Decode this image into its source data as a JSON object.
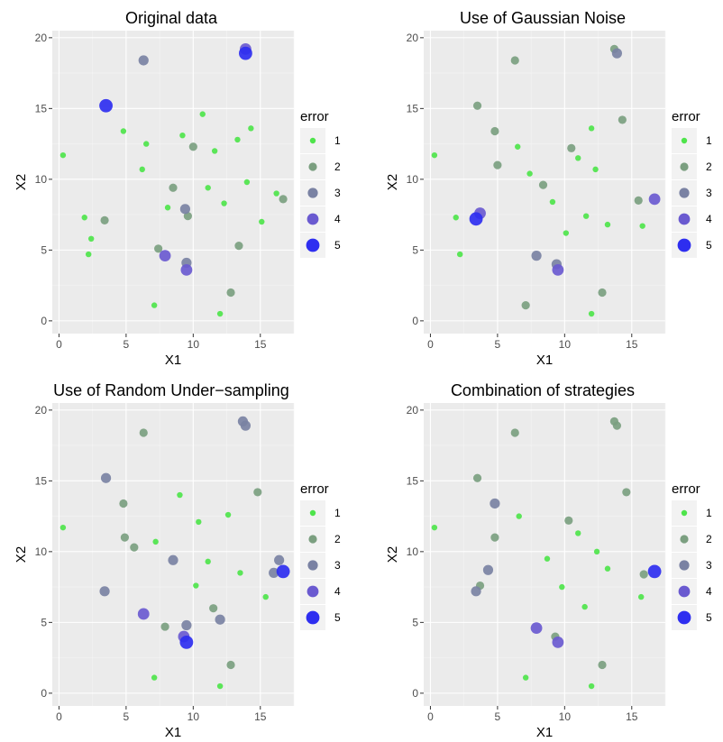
{
  "chart_data": [
    {
      "type": "scatter",
      "title": "Original data",
      "xlabel": "X1",
      "ylabel": "X2",
      "xlim": [
        -0.5,
        17.5
      ],
      "ylim": [
        -0.9,
        20.5
      ],
      "xticks": [
        0,
        5,
        10,
        15
      ],
      "yticks": [
        0,
        5,
        10,
        15,
        20
      ],
      "grid": true,
      "legend": {
        "title": "error",
        "position": "right",
        "labels": [
          "1",
          "2",
          "3",
          "4",
          "5"
        ]
      },
      "colors": [
        "#4ee44b",
        "#7b9f80",
        "#7a82a3",
        "#6a5ad0",
        "#2e2ef0"
      ],
      "points": [
        [
          13.9,
          19.2,
          4
        ],
        [
          13.9,
          18.9,
          5
        ],
        [
          6.3,
          18.4,
          3
        ],
        [
          3.5,
          15.2,
          5
        ],
        [
          12.8,
          2.0,
          2
        ],
        [
          7.1,
          1.1,
          1
        ],
        [
          12.0,
          0.5,
          1
        ],
        [
          0.3,
          11.7,
          1
        ],
        [
          4.8,
          13.4,
          1
        ],
        [
          1.9,
          7.3,
          1
        ],
        [
          2.4,
          5.8,
          1
        ],
        [
          2.2,
          4.7,
          1
        ],
        [
          3.4,
          7.1,
          2
        ],
        [
          7.4,
          5.1,
          2
        ],
        [
          7.9,
          4.6,
          4
        ],
        [
          9.5,
          3.6,
          4
        ],
        [
          9.5,
          4.1,
          3
        ],
        [
          13.4,
          5.3,
          2
        ],
        [
          16.7,
          8.6,
          2
        ],
        [
          10.0,
          12.3,
          2
        ],
        [
          8.5,
          9.4,
          2
        ],
        [
          9.4,
          7.9,
          3
        ],
        [
          9.6,
          7.4,
          2
        ],
        [
          14.0,
          9.8,
          1
        ],
        [
          15.1,
          7.0,
          1
        ],
        [
          16.2,
          9.0,
          1
        ],
        [
          6.5,
          12.5,
          1
        ],
        [
          6.2,
          10.7,
          1
        ],
        [
          11.6,
          12.0,
          1
        ],
        [
          12.3,
          8.3,
          1
        ],
        [
          10.7,
          14.6,
          1
        ],
        [
          9.2,
          13.1,
          1
        ],
        [
          11.1,
          9.4,
          1
        ],
        [
          8.1,
          8.0,
          1
        ],
        [
          13.3,
          12.8,
          1
        ],
        [
          14.3,
          13.6,
          1
        ]
      ]
    },
    {
      "type": "scatter",
      "title": "Use of Gaussian Noise",
      "xlabel": "X1",
      "ylabel": "X2",
      "xlim": [
        -0.5,
        17.5
      ],
      "ylim": [
        -0.9,
        20.5
      ],
      "xticks": [
        0,
        5,
        10,
        15
      ],
      "yticks": [
        0,
        5,
        10,
        15,
        20
      ],
      "grid": true,
      "legend": {
        "title": "error",
        "position": "right",
        "labels": [
          "1",
          "2",
          "3",
          "4",
          "5"
        ]
      },
      "colors": [
        "#4ee44b",
        "#7b9f80",
        "#7a82a3",
        "#6a5ad0",
        "#2e2ef0"
      ],
      "points": [
        [
          13.7,
          19.2,
          2
        ],
        [
          13.9,
          18.9,
          3
        ],
        [
          6.3,
          18.4,
          2
        ],
        [
          3.5,
          15.2,
          2
        ],
        [
          4.8,
          13.4,
          2
        ],
        [
          3.4,
          7.2,
          5
        ],
        [
          3.7,
          7.6,
          4
        ],
        [
          9.5,
          3.6,
          4
        ],
        [
          9.4,
          4.0,
          3
        ],
        [
          7.9,
          4.6,
          3
        ],
        [
          16.7,
          8.6,
          4
        ],
        [
          12.8,
          2.0,
          2
        ],
        [
          7.1,
          1.1,
          2
        ],
        [
          12.0,
          0.5,
          1
        ],
        [
          0.3,
          11.7,
          1
        ],
        [
          2.2,
          4.7,
          1
        ],
        [
          1.9,
          7.3,
          1
        ],
        [
          5.0,
          11.0,
          2
        ],
        [
          15.5,
          8.5,
          2
        ],
        [
          14.3,
          14.2,
          2
        ],
        [
          10.5,
          12.2,
          2
        ],
        [
          8.4,
          9.6,
          2
        ],
        [
          11.0,
          11.5,
          1
        ],
        [
          9.1,
          8.4,
          1
        ],
        [
          12.3,
          10.7,
          1
        ],
        [
          6.5,
          12.3,
          1
        ],
        [
          13.2,
          6.8,
          1
        ],
        [
          10.1,
          6.2,
          1
        ],
        [
          15.8,
          6.7,
          1
        ],
        [
          12.0,
          13.6,
          1
        ],
        [
          7.4,
          10.4,
          1
        ],
        [
          11.6,
          7.4,
          1
        ]
      ]
    },
    {
      "type": "scatter",
      "title": "Use of Random Under−sampling",
      "xlabel": "X1",
      "ylabel": "X2",
      "xlim": [
        -0.5,
        17.5
      ],
      "ylim": [
        -0.9,
        20.5
      ],
      "xticks": [
        0,
        5,
        10,
        15
      ],
      "yticks": [
        0,
        5,
        10,
        15,
        20
      ],
      "grid": true,
      "legend": {
        "title": "error",
        "position": "right",
        "labels": [
          "1",
          "2",
          "3",
          "4",
          "5"
        ]
      },
      "colors": [
        "#4ee44b",
        "#7b9f80",
        "#7a82a3",
        "#6a5ad0",
        "#2e2ef0"
      ],
      "points": [
        [
          13.7,
          19.2,
          3
        ],
        [
          13.9,
          18.9,
          3
        ],
        [
          6.3,
          18.4,
          2
        ],
        [
          3.5,
          15.2,
          3
        ],
        [
          3.4,
          7.2,
          3
        ],
        [
          6.3,
          5.6,
          4
        ],
        [
          9.5,
          3.6,
          5
        ],
        [
          9.3,
          4.0,
          4
        ],
        [
          9.5,
          4.8,
          3
        ],
        [
          16.7,
          8.6,
          5
        ],
        [
          16.4,
          9.4,
          3
        ],
        [
          16.0,
          8.5,
          3
        ],
        [
          12.8,
          2.0,
          2
        ],
        [
          7.1,
          1.1,
          1
        ],
        [
          12.0,
          0.5,
          1
        ],
        [
          0.3,
          11.7,
          1
        ],
        [
          4.8,
          13.4,
          2
        ],
        [
          4.9,
          11.0,
          2
        ],
        [
          5.6,
          10.3,
          2
        ],
        [
          8.5,
          9.4,
          3
        ],
        [
          12.0,
          5.2,
          3
        ],
        [
          11.5,
          6.0,
          2
        ],
        [
          14.8,
          14.2,
          2
        ],
        [
          15.4,
          6.8,
          1
        ],
        [
          10.4,
          12.1,
          1
        ],
        [
          11.1,
          9.3,
          1
        ],
        [
          9.0,
          14.0,
          1
        ],
        [
          7.2,
          10.7,
          1
        ],
        [
          12.6,
          12.6,
          1
        ],
        [
          10.2,
          7.6,
          1
        ],
        [
          13.5,
          8.5,
          1
        ],
        [
          7.9,
          4.7,
          2
        ]
      ]
    },
    {
      "type": "scatter",
      "title": "Combination of strategies",
      "xlabel": "X1",
      "ylabel": "X2",
      "xlim": [
        -0.5,
        17.5
      ],
      "ylim": [
        -0.9,
        20.5
      ],
      "xticks": [
        0,
        5,
        10,
        15
      ],
      "yticks": [
        0,
        5,
        10,
        15,
        20
      ],
      "grid": true,
      "legend": {
        "title": "error",
        "position": "right",
        "labels": [
          "1",
          "2",
          "3",
          "4",
          "5"
        ]
      },
      "colors": [
        "#4ee44b",
        "#7b9f80",
        "#7a82a3",
        "#6a5ad0",
        "#2e2ef0"
      ],
      "points": [
        [
          13.7,
          19.2,
          2
        ],
        [
          13.9,
          18.9,
          2
        ],
        [
          6.3,
          18.4,
          2
        ],
        [
          3.5,
          15.2,
          2
        ],
        [
          4.8,
          13.4,
          3
        ],
        [
          16.7,
          8.6,
          5
        ],
        [
          3.4,
          7.2,
          3
        ],
        [
          3.7,
          7.6,
          2
        ],
        [
          4.3,
          8.7,
          3
        ],
        [
          9.5,
          3.6,
          4
        ],
        [
          7.9,
          4.6,
          4
        ],
        [
          9.3,
          4.0,
          2
        ],
        [
          12.8,
          2.0,
          2
        ],
        [
          7.1,
          1.1,
          1
        ],
        [
          12.0,
          0.5,
          1
        ],
        [
          0.3,
          11.7,
          1
        ],
        [
          14.6,
          14.2,
          2
        ],
        [
          4.8,
          11.0,
          2
        ],
        [
          15.9,
          8.4,
          2
        ],
        [
          10.3,
          12.2,
          2
        ],
        [
          11.0,
          11.3,
          1
        ],
        [
          8.7,
          9.5,
          1
        ],
        [
          12.4,
          10.0,
          1
        ],
        [
          6.6,
          12.5,
          1
        ],
        [
          9.8,
          7.5,
          1
        ],
        [
          13.2,
          8.8,
          1
        ],
        [
          15.7,
          6.8,
          1
        ],
        [
          11.5,
          6.1,
          1
        ]
      ]
    }
  ]
}
